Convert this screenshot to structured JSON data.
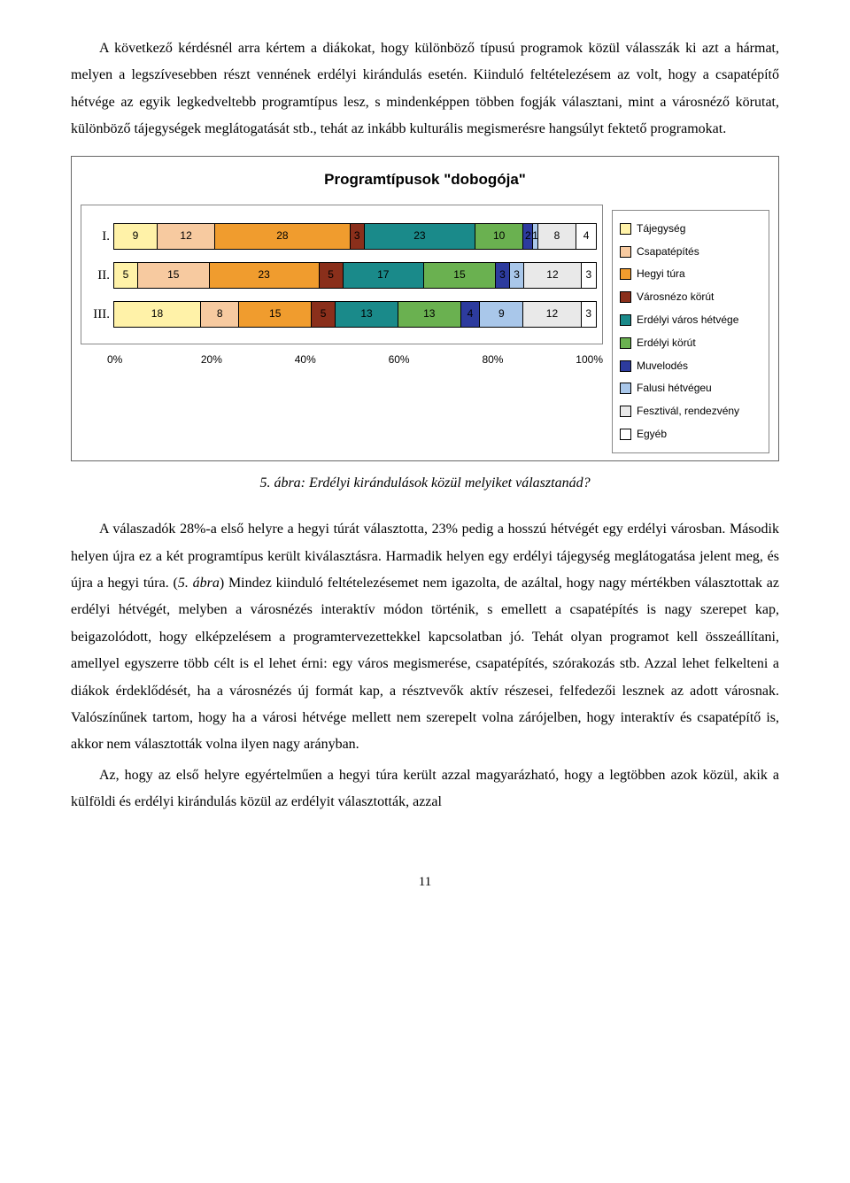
{
  "paragraphs": {
    "p1": "A következő kérdésnél arra kértem a diákokat, hogy különböző típusú programok közül válasszák ki azt a hármat, melyen a legszívesebben részt vennének erdélyi kirándulás esetén. Kiinduló feltételezésem az volt, hogy a csapatépítő hétvége az egyik legkedveltebb programtípus lesz, s mindenképpen többen fogják választani, mint a városnéző körutat, különböző tájegységek meglátogatását stb., tehát az inkább kulturális megismerésre hangsúlyt fektető programokat.",
    "p2_a": "A válaszadók 28%-a első helyre a hegyi túrát választotta, 23% pedig a hosszú hétvégét egy erdélyi városban. Második helyen újra ez a két programtípus került kiválasztásra. Harmadik helyen egy erdélyi tájegység meglátogatása jelent meg, és újra a hegyi túra. (",
    "p2_b": "5. ábra",
    "p2_c": ") Mindez kiinduló feltételezésemet nem igazolta, de azáltal, hogy nagy mértékben választottak az erdélyi hétvégét, melyben a városnézés interaktív módon történik, s emellett a csapatépítés is nagy szerepet kap, beigazolódott, hogy elképzelésem a programtervezettekkel kapcsolatban jó. Tehát olyan programot kell összeállítani, amellyel egyszerre több célt is el lehet érni: egy város megismerése, csapatépítés, szórakozás stb. Azzal lehet felkelteni a diákok érdeklődését, ha a városnézés új formát kap, a résztvevők aktív részesei, felfedezői lesznek az adott városnak. Valószínűnek tartom, hogy ha a városi hétvége mellett nem szerepelt volna zárójelben, hogy interaktív és csapatépítő is, akkor nem választották volna ilyen nagy arányban.",
    "p3": "Az, hogy az első helyre egyértelműen a hegyi túra került azzal magyarázható, hogy a legtöbben azok közül, akik a külföldi és erdélyi kirándulás közül az erdélyit választották, azzal"
  },
  "chart": {
    "title": "Programtípusok \"dobogója\"",
    "type": "stacked-bar-horizontal",
    "row_labels": [
      "I.",
      "II.",
      "III."
    ],
    "series": [
      {
        "label": "Tájegység",
        "color": "#fff2a8"
      },
      {
        "label": "Csapatépítés",
        "color": "#f7caa0"
      },
      {
        "label": "Hegyi túra",
        "color": "#f09c2e"
      },
      {
        "label": "Városnézo körút",
        "color": "#8a2f1b"
      },
      {
        "label": "Erdélyi város hétvége",
        "color": "#1a8a8a"
      },
      {
        "label": "Erdélyi körút",
        "color": "#6ab150"
      },
      {
        "label": "Muvelodés",
        "color": "#2d3b9e"
      },
      {
        "label": "Falusi hétvégeu",
        "color": "#a9c7ea"
      },
      {
        "label": "Fesztivál, rendezvény",
        "color": "#e9e9e9"
      },
      {
        "label": "Egyéb",
        "color": "#ffffff"
      }
    ],
    "rows": [
      [
        9,
        12,
        28,
        3,
        23,
        10,
        2,
        1,
        8,
        4
      ],
      [
        5,
        15,
        23,
        5,
        17,
        15,
        3,
        3,
        12,
        3
      ],
      [
        18,
        8,
        15,
        5,
        13,
        13,
        4,
        9,
        12,
        3
      ]
    ],
    "xticks": [
      "0%",
      "20%",
      "40%",
      "60%",
      "80%",
      "100%"
    ]
  },
  "caption": {
    "num": "5. ábra",
    "text": ": Erdélyi kirándulások közül melyiket választanád?"
  },
  "page_number": "11"
}
